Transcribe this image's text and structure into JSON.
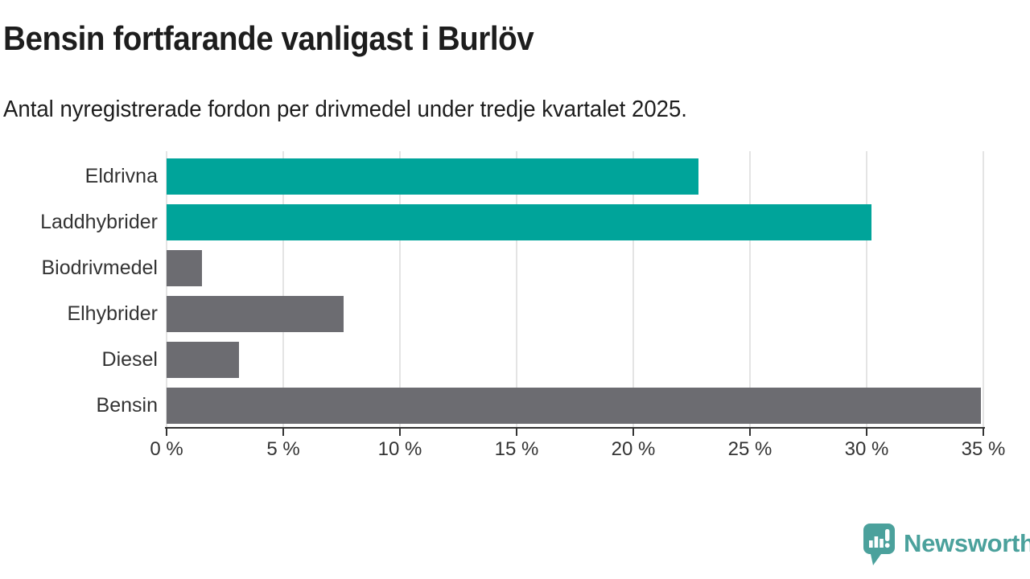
{
  "header": {
    "title": "Bensin fortfarande vanligast i Burlöv",
    "subtitle": "Antal nyregistrerade fordon per drivmedel under tredje kvartalet 2025."
  },
  "chart_data": {
    "type": "bar",
    "orientation": "horizontal",
    "title": "Bensin fortfarande vanligast i Burlöv",
    "subtitle": "Antal nyregistrerade fordon per drivmedel under tredje kvartalet 2025.",
    "categories": [
      "Eldrivna",
      "Laddhybrider",
      "Biodrivmedel",
      "Elhybrider",
      "Diesel",
      "Bensin"
    ],
    "values": [
      22.8,
      30.2,
      1.5,
      7.6,
      3.1,
      34.9
    ],
    "bar_colors": [
      "#00a49a",
      "#00a49a",
      "#6c6c71",
      "#6c6c71",
      "#6c6c71",
      "#6c6c71"
    ],
    "xlim": [
      0,
      35
    ],
    "x_ticks": [
      0,
      5,
      10,
      15,
      20,
      25,
      30,
      35
    ],
    "x_tick_labels": [
      "0 %",
      "5 %",
      "10 %",
      "15 %",
      "20 %",
      "25 %",
      "30 %",
      "35 %"
    ],
    "xlabel": "",
    "ylabel": "",
    "grid": true,
    "legend": false
  },
  "branding": {
    "logo_text": "Newsworthy",
    "logo_icon": "speech-bubble-bar-chart-icon",
    "logo_color": "#4ba19c"
  },
  "colors": {
    "accent_teal": "#00a49a",
    "neutral_gray": "#6c6c71",
    "axis": "#333333",
    "gridline": "#e4e4e4",
    "text": "#1d1d1d"
  }
}
